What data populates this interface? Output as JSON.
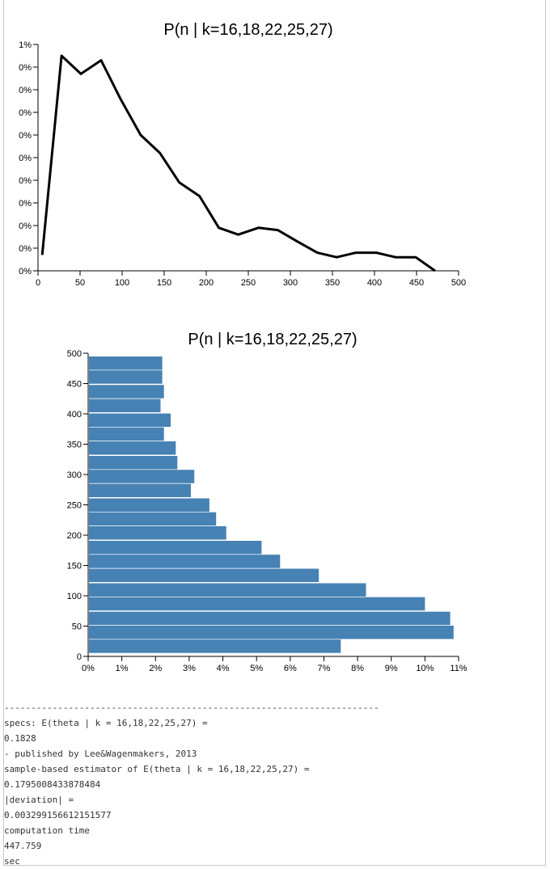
{
  "chart_data": [
    {
      "type": "line",
      "title": "P(n | k=16,18,22,25,27)",
      "xlabel": "",
      "ylabel": "",
      "x": [
        5,
        28,
        51,
        75,
        98,
        122,
        145,
        168,
        192,
        215,
        238,
        262,
        285,
        308,
        332,
        355,
        378,
        402,
        425,
        449,
        472
      ],
      "y": [
        0.1,
        8.9,
        8.1,
        8.7,
        7.0,
        5.4,
        4.6,
        3.3,
        2.7,
        1.3,
        1.0,
        1.3,
        1.2,
        0.7,
        0.2,
        0.0,
        0.2,
        0.2,
        0.0,
        0.0,
        -0.6
      ],
      "xlim": [
        0,
        500
      ],
      "xticks": [
        "0",
        "50",
        "100",
        "150",
        "200",
        "250",
        "300",
        "350",
        "400",
        "450",
        "500"
      ],
      "yticks": [
        "0%",
        "0%",
        "0%",
        "0%",
        "0%",
        "0%",
        "0%",
        "0%",
        "0%",
        "0%",
        "1%"
      ],
      "grid": false,
      "line_color": "#000000"
    },
    {
      "type": "bar",
      "orientation": "horizontal",
      "title": "P(n | k=16,18,22,25,27)",
      "xlabel": "",
      "ylabel": "",
      "categories": [
        5,
        28,
        51,
        75,
        98,
        122,
        145,
        168,
        192,
        215,
        238,
        262,
        285,
        308,
        332,
        355,
        378,
        402,
        425,
        449,
        472
      ],
      "values": [
        7.5,
        10.85,
        10.75,
        10.0,
        8.25,
        6.85,
        5.7,
        5.15,
        4.1,
        3.8,
        3.6,
        3.05,
        3.15,
        2.65,
        2.6,
        2.25,
        2.45,
        2.15,
        2.25,
        2.2,
        2.2
      ],
      "xlim": [
        0,
        11
      ],
      "ylim": [
        0,
        500
      ],
      "xticks": [
        "0%",
        "1%",
        "2%",
        "3%",
        "4%",
        "5%",
        "6%",
        "7%",
        "8%",
        "9%",
        "10%",
        "11%"
      ],
      "yticks": [
        "0",
        "50",
        "100",
        "150",
        "200",
        "250",
        "300",
        "350",
        "400",
        "450",
        "500"
      ],
      "grid": false,
      "bar_color": "#4682b4"
    }
  ],
  "output": {
    "separator": "----------------------------------------------------------------------",
    "lines": [
      "specs: E(theta | k = 16,18,22,25,27) =",
      "0.1828",
      "- published by Lee&Wagenmakers, 2013",
      "sample-based estimator of E(theta | k = 16,18,22,25,27) =",
      "0.1795008433878484",
      "|deviation| =",
      "0.003299156612151577",
      "computation time",
      "447.759",
      "sec"
    ]
  }
}
